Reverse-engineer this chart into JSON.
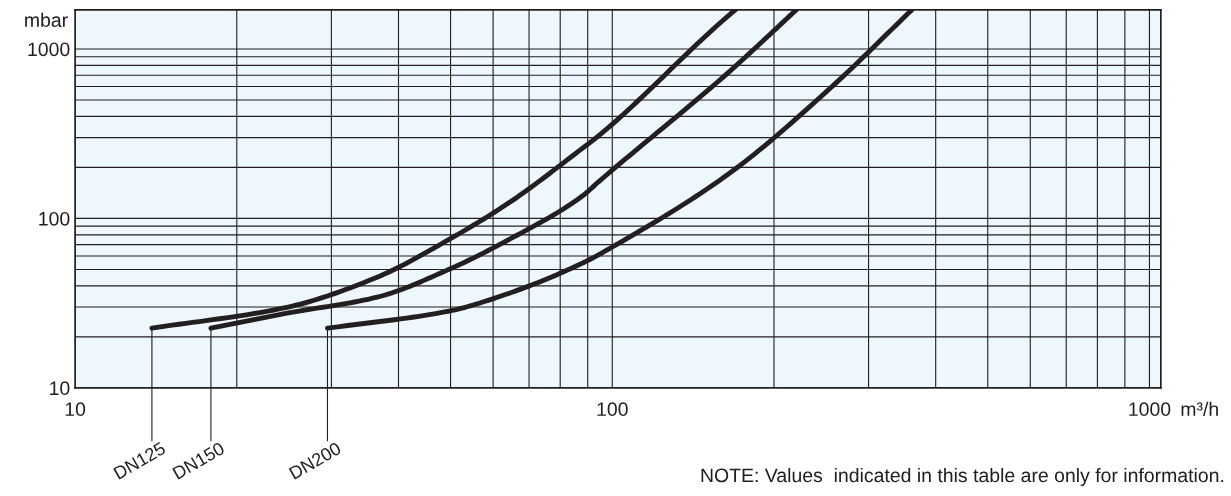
{
  "chart_data": {
    "type": "line",
    "log": "xy",
    "ylabel": "mbar",
    "xlabel": "m³/h",
    "xlim": [
      10,
      1050
    ],
    "ylim": [
      10,
      1700
    ],
    "xticks": [
      10,
      100,
      1000
    ],
    "yticks": [
      10,
      100,
      1000
    ],
    "grid": true,
    "legend": false,
    "marker": "none",
    "line_style": "solid",
    "series": [
      {
        "name": "DN125",
        "color": "#231f20",
        "x": [
          13.9,
          24.8,
          36.5,
          49.7,
          64.3,
          87.8,
          94.4,
          165,
          169.5
        ],
        "values": [
          22.5,
          29.9,
          45.0,
          75.2,
          124,
          258,
          308,
          1585,
          1700
        ]
      },
      {
        "name": "DN150",
        "color": "#231f20",
        "x": [
          17.9,
          24.8,
          36.5,
          49.7,
          64.3,
          87.8,
          94.4,
          165,
          220
        ],
        "values": [
          22.5,
          27.6,
          34.3,
          50.1,
          75.2,
          135,
          165,
          733,
          1700
        ]
      },
      {
        "name": "DN200",
        "color": "#231f20",
        "x": [
          29.5,
          49.7,
          64.3,
          87.8,
          102.8,
          165,
          255,
          361
        ],
        "values": [
          22.5,
          28.4,
          36.2,
          54.3,
          71.3,
          184,
          590,
          1700
        ]
      }
    ],
    "annotations": [
      "NOTE: Values  indicated in this table are only for information."
    ]
  }
}
